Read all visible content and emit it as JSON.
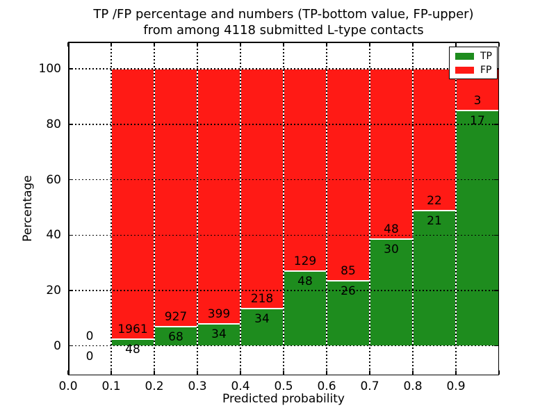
{
  "figure": {
    "title_line1": "TP /FP percentage and numbers (TP-bottom value, FP-upper)",
    "title_line2": "from among 4118 submitted L-type contacts"
  },
  "axes": {
    "xlabel": "Predicted probability",
    "ylabel": "Percentage",
    "xtick_values": [
      0.0,
      0.1,
      0.2,
      0.3,
      0.4,
      0.5,
      0.6,
      0.7,
      0.8,
      0.9
    ],
    "xtick_labels": [
      "0.0",
      "0.1",
      "0.2",
      "0.3",
      "0.4",
      "0.5",
      "0.6",
      "0.7",
      "0.8",
      "0.9"
    ],
    "ytick_values": [
      0,
      20,
      40,
      60,
      80,
      100
    ],
    "ytick_labels": [
      "0",
      "20",
      "40",
      "60",
      "80",
      "100"
    ]
  },
  "legend": {
    "entries": [
      {
        "label": "TP",
        "color": "#1e8c1e"
      },
      {
        "label": "FP",
        "color": "#ff1a15"
      }
    ]
  },
  "chart_data": {
    "type": "bar",
    "stacked": true,
    "normalized": "each bin scaled so TP+FP = 100%; numeric labels show raw counts (TP below boundary, FP above)",
    "title": "TP /FP percentage and numbers (TP-bottom value, FP-upper) from among 4118 submitted L-type contacts",
    "xlabel": "Predicted probability",
    "ylabel": "Percentage",
    "total_contacts": 4118,
    "bin_edges": [
      0.0,
      0.1,
      0.2,
      0.3,
      0.4,
      0.5,
      0.6,
      0.7,
      0.8,
      0.9,
      1.0
    ],
    "series": [
      {
        "name": "TP",
        "color": "#1e8c1e",
        "counts": [
          0,
          48,
          68,
          34,
          34,
          48,
          26,
          30,
          21,
          17
        ]
      },
      {
        "name": "FP",
        "color": "#ff1a15",
        "counts": [
          0,
          1961,
          927,
          399,
          218,
          129,
          85,
          48,
          22,
          3
        ]
      }
    ],
    "tp_percent_per_bin": [
      null,
      2.39,
      6.83,
      7.85,
      13.49,
      27.12,
      23.42,
      38.46,
      48.84,
      85.0
    ],
    "xlim": [
      0.0,
      1.0
    ],
    "ylim": [
      -10.6,
      109.8
    ],
    "grid": "dotted",
    "legend_position": "upper right"
  }
}
